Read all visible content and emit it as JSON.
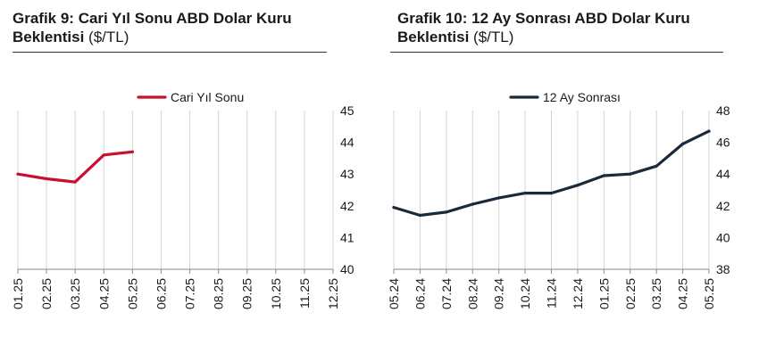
{
  "charts": [
    {
      "title": "Grafik 9: Cari Yıl Sonu ABD Dolar Kuru",
      "title_line2": "Beklentisi",
      "title_unit": "($/TL)"
    },
    {
      "title": "Grafik 10: 12 Ay Sonrası ABD Dolar Kuru",
      "title_line2": "Beklentisi",
      "title_unit": "($/TL)"
    }
  ],
  "chart_data": [
    {
      "type": "line",
      "categories": [
        "01.25",
        "02.25",
        "03.25",
        "04.25",
        "05.25",
        "06.25",
        "07.25",
        "08.25",
        "09.25",
        "10.25",
        "11.25",
        "12.25"
      ],
      "series": [
        {
          "name": "Cari Yıl Sonu",
          "values": [
            43.0,
            42.85,
            42.75,
            43.6,
            43.7,
            null,
            null,
            null,
            null,
            null,
            null,
            null
          ],
          "color": "#c8102e"
        }
      ],
      "ylim": [
        40,
        45
      ],
      "yticks": [
        40,
        41,
        42,
        43,
        44,
        45
      ],
      "y_axis_side": "right",
      "grid": "vertical",
      "legend": "top-center"
    },
    {
      "type": "line",
      "categories": [
        "05.24",
        "06.24",
        "07.24",
        "08.24",
        "09.24",
        "10.24",
        "11.24",
        "12.24",
        "01.25",
        "02.25",
        "03.25",
        "04.25",
        "05.25"
      ],
      "series": [
        {
          "name": "12 Ay Sonrası",
          "values": [
            41.9,
            41.4,
            41.6,
            42.1,
            42.5,
            42.8,
            42.8,
            43.3,
            43.9,
            44.0,
            44.5,
            45.9,
            46.7
          ],
          "color": "#1b2a3a"
        }
      ],
      "ylim": [
        38,
        48
      ],
      "yticks": [
        38,
        40,
        42,
        44,
        46,
        48
      ],
      "y_axis_side": "right",
      "grid": "vertical",
      "legend": "top-center"
    }
  ]
}
